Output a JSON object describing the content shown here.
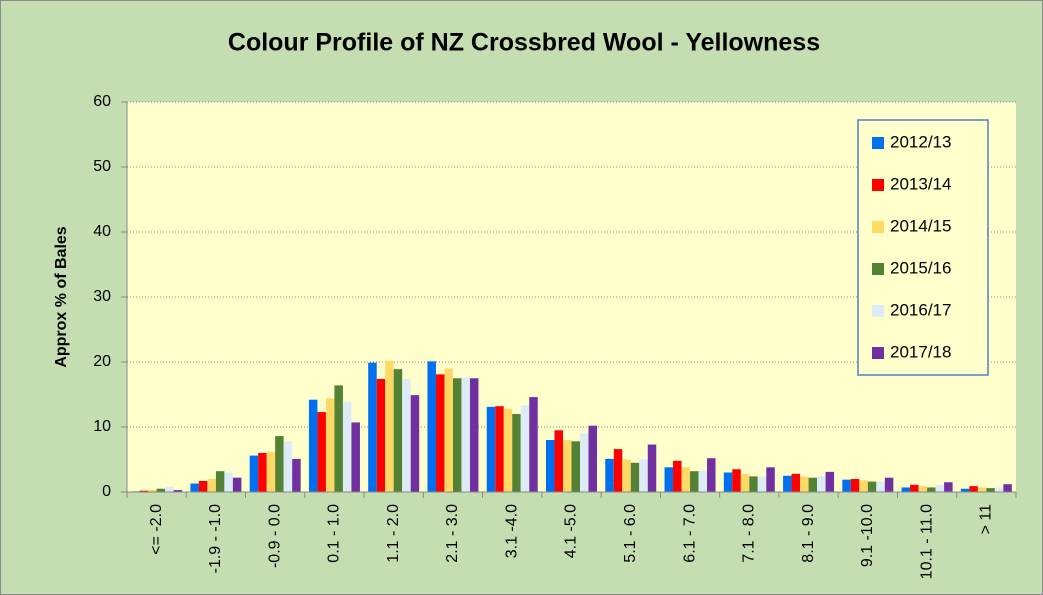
{
  "chart_data": {
    "type": "bar",
    "title": "Colour Profile of NZ Crossbred Wool - Yellowness",
    "y_label": "Approx % of Bales",
    "categories": [
      "<= -2.0",
      "-1.9 - -1.0",
      "-0.9 - 0.0",
      "0.1 - 1.0",
      "1.1 - 2.0",
      "2.1 - 3.0",
      "3.1 -4.0",
      "4.1 -5.0",
      "5.1 - 6.0",
      "6.1 - 7.0",
      "7.1 - 8.0",
      "8.1 - 9.0",
      "9.1 -10.0",
      "10.1 - 11.0",
      "> 11"
    ],
    "series": [
      {
        "name": "2012/13",
        "color": "#0070f0",
        "values": [
          0.1,
          1.3,
          5.6,
          14.2,
          19.9,
          20.1,
          13.1,
          8.0,
          5.1,
          3.8,
          3.0,
          2.5,
          1.9,
          0.7,
          0.5
        ]
      },
      {
        "name": "2013/14",
        "color": "#ff0000",
        "values": [
          0.2,
          1.7,
          6.0,
          12.3,
          17.4,
          18.1,
          13.2,
          9.5,
          6.6,
          4.8,
          3.5,
          2.8,
          2.0,
          1.1,
          0.9
        ]
      },
      {
        "name": "2014/15",
        "color": "#ffd966",
        "values": [
          0.3,
          2.0,
          6.2,
          14.4,
          20.2,
          19.0,
          12.8,
          8.0,
          5.0,
          3.8,
          2.8,
          2.4,
          1.8,
          0.9,
          0.7
        ]
      },
      {
        "name": "2015/16",
        "color": "#548235",
        "values": [
          0.5,
          3.2,
          8.6,
          16.4,
          18.9,
          17.5,
          12.0,
          7.8,
          4.5,
          3.2,
          2.4,
          2.2,
          1.6,
          0.7,
          0.6
        ]
      },
      {
        "name": "2016/17",
        "color": "#ddebf7",
        "values": [
          0.8,
          3.0,
          7.8,
          13.9,
          17.4,
          17.6,
          13.3,
          9.0,
          5.1,
          3.3,
          2.4,
          2.4,
          1.6,
          1.1,
          0.7
        ]
      },
      {
        "name": "2017/18",
        "color": "#7030a0",
        "values": [
          0.3,
          2.2,
          5.1,
          10.7,
          14.9,
          17.5,
          14.6,
          10.2,
          7.3,
          5.2,
          3.8,
          3.1,
          2.2,
          1.5,
          1.2
        ]
      }
    ],
    "ylim": [
      0,
      60
    ],
    "yticks": [
      0,
      10,
      20,
      30,
      40,
      50,
      60
    ],
    "grid": true,
    "legend_position": "top-right"
  }
}
